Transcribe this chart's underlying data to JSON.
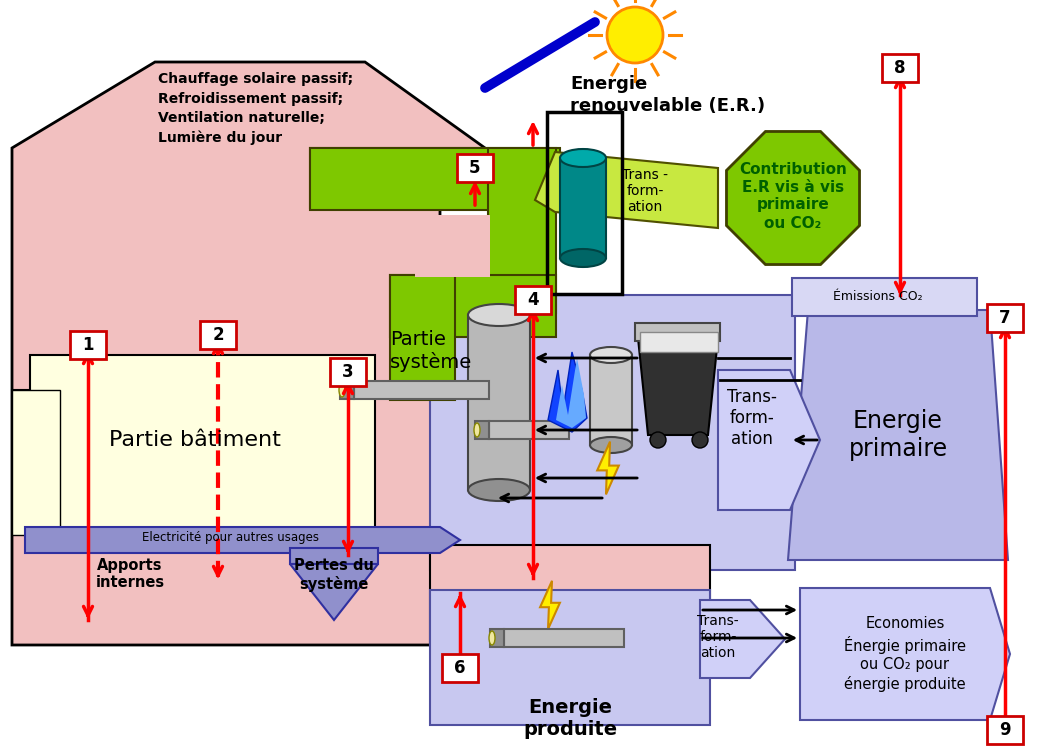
{
  "bg": "#ffffff",
  "house_pink": "#f2c0c0",
  "yellow_zone": "#ffffe0",
  "green_bright": "#7ec800",
  "green_light": "#c8e840",
  "blue_zone": "#c8c8f0",
  "blue_zone2": "#d0d0f8",
  "purple_ep": "#b8b8e8",
  "elec_blue": "#8888cc",
  "red": "#ff0000",
  "dark_red_box": "#cc0000",
  "sun_yellow": "#ffee00",
  "sun_orange": "#ff8800",
  "teal": "#008888",
  "grey": "#909090",
  "dark_grey": "#505050",
  "black": "#000000",
  "white": "#ffffff",
  "text_chauffage": "Chauffage solaire passif;\nRefroidissement passif;\nVentilation naturelle;\nLumière du jour",
  "text_energie_r": "Energie\nrenouvelable (E.R.)",
  "text_partie_bat": "Partie bâtiment",
  "text_partie_sys": "Partie\nsystème",
  "text_apports": "Apports\ninternes",
  "text_pertes": "Pertes du\nsystème",
  "text_elec": "Electricité pour autres usages",
  "text_transform1": "Trans -\nform-\nation",
  "text_transform2": "Trans-\nform-\nation",
  "text_transform3": "Trans-\nform-\nation",
  "text_ep": "Energie\nprimaire",
  "text_emissions": "Émissions CO₂",
  "text_contrib": "Contribution\nE.R vis à vis\nprimaire\nou CO₂",
  "text_economies": "Economies\nÉnergie primaire\nou CO₂ pour\nénergie produite",
  "text_energie_prod": "Energie\nproduite"
}
